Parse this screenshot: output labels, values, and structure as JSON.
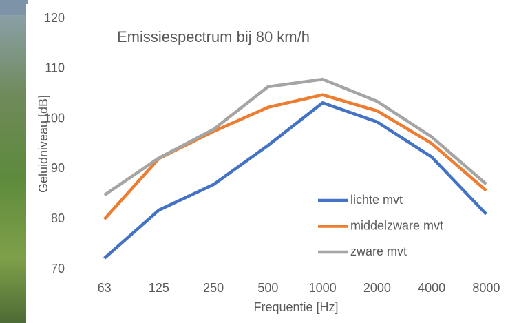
{
  "chart_data": {
    "type": "line",
    "title": "Emissiespectrum bij 80 km/h",
    "x_label": "Frequentie [Hz]",
    "y_label": "Geluidniveau [dB]",
    "categories": [
      "63",
      "125",
      "250",
      "500",
      "1000",
      "2000",
      "4000",
      "8000"
    ],
    "series": [
      {
        "name": "lichte mvt",
        "color": "#4472c4",
        "values": [
          72.2,
          81.8,
          86.9,
          94.7,
          103.2,
          99.4,
          92.4,
          81
        ]
      },
      {
        "name": "middelzware mvt",
        "color": "#ed7d31",
        "values": [
          80,
          92.1,
          97.5,
          102.3,
          104.8,
          101.6,
          95.1,
          85.7
        ]
      },
      {
        "name": "zware mvt",
        "color": "#a5a5a5",
        "values": [
          84.8,
          92.2,
          97.9,
          106.4,
          107.9,
          103.5,
          96.4,
          87
        ]
      }
    ],
    "ylim": [
      70,
      120
    ],
    "yticks": [
      70,
      80,
      90,
      100,
      110,
      120
    ],
    "grid": false,
    "legend": "lower right"
  }
}
